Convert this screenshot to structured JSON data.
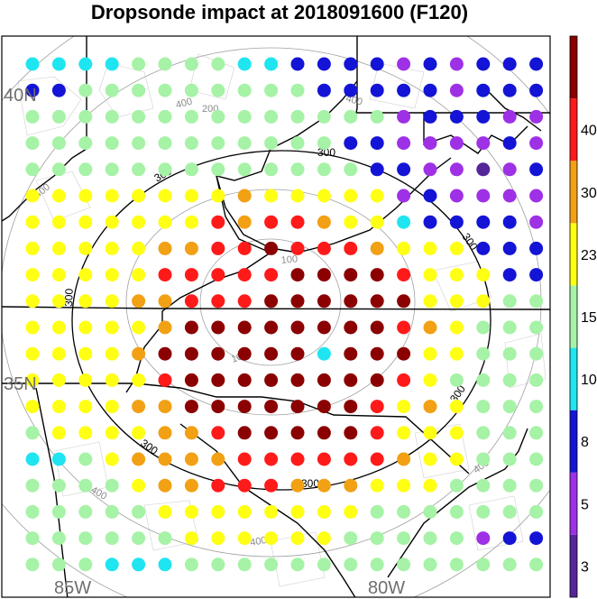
{
  "title": "Dropsonde impact at 2018091600 (F120)",
  "lat_labels": [
    "40N",
    "35N"
  ],
  "lon_labels": [
    "85W",
    "80W"
  ],
  "range_ring_labels": {
    "gray": [
      "100",
      "100",
      "200",
      "400",
      "400",
      "400",
      "400",
      "400",
      "400"
    ],
    "black": [
      "300",
      "300",
      "300",
      "300",
      "300",
      "300"
    ]
  },
  "colorbar": {
    "tick_labels": [
      "3",
      "5",
      "8",
      "10",
      "15",
      "23",
      "30",
      "40"
    ],
    "bin_colors": [
      "#55269a",
      "#9e30e6",
      "#1414d6",
      "#1fe5f0",
      "#a6f2a6",
      "#ffff14",
      "#f2a014",
      "#ff1a1a",
      "#8b0000"
    ]
  },
  "chart_data": {
    "type": "point_map",
    "grid_rows": 20,
    "grid_cols": 20,
    "color_key": "letters a-i map to colorbar bins low to high; '.' means no dot",
    "rows": [
      "ddddeeeeddccccbcbccc",
      "cceeeeeeeeecccccbccc",
      "eeeeeeeeeeeeeebcccbb",
      "eeeeeeeeeeeeccbbbbcb",
      "eeeeeeeeeeeeeccbbabc",
      "ffffffffgfffffbcbbbb",
      "fffffffhghhgffdccccb",
      "fffffgghhihhhgfffccc",
      "fffffhhhhhiiiihfffcc",
      "ffffgghhhiiiiiifffee",
      "fffffgiiiiiiiihgfeee",
      "ffffgiiiiiidiiiffeee",
      "fffffhiiiiiiiihfeeee",
      "ffffggiiiiiiihfgfeee",
      "effffgghiiiiihfffeee",
      "ddefgggghhhhhhgffeee",
      "eeeefgghhhgggfffeeee",
      "eeeeeffffffffeeeeeee",
      "eeeeeeffffffeeeeebcc",
      "eeedddeeeeeeeeeeeeee"
    ]
  }
}
